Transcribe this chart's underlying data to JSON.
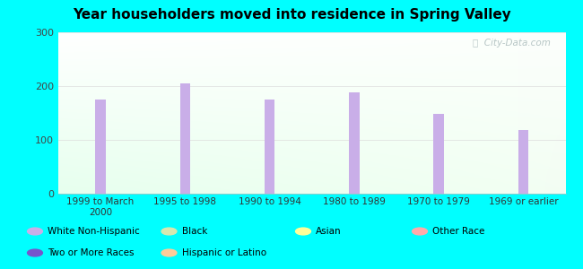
{
  "title": "Year householders moved into residence in Spring Valley",
  "background_color": "#00FFFF",
  "categories": [
    "1999 to March\n2000",
    "1995 to 1998",
    "1990 to 1994",
    "1980 to 1989",
    "1970 to 1979",
    "1969 or earlier"
  ],
  "white_non_hispanic": [
    175,
    205,
    175,
    188,
    148,
    118
  ],
  "bar_color_white": "#c9aee8",
  "ylim": [
    0,
    300
  ],
  "yticks": [
    0,
    100,
    200,
    300
  ],
  "watermark": "City-Data.com",
  "legend": [
    {
      "label": "White Non-Hispanic",
      "color": "#c9aee8"
    },
    {
      "label": "Black",
      "color": "#d8e8b0"
    },
    {
      "label": "Asian",
      "color": "#ffff99"
    },
    {
      "label": "Other Race",
      "color": "#ffaaaa"
    },
    {
      "label": "Two or More Races",
      "color": "#7755cc"
    },
    {
      "label": "Hispanic or Latino",
      "color": "#ffcc99"
    }
  ]
}
